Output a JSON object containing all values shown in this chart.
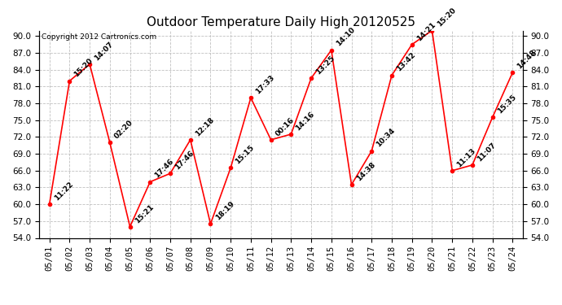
{
  "title": "Outdoor Temperature Daily High 20120525",
  "copyright": "Copyright 2012 Cartronics.com",
  "x_labels": [
    "05/01",
    "05/02",
    "05/03",
    "05/04",
    "05/05",
    "05/06",
    "05/07",
    "05/08",
    "05/09",
    "05/10",
    "05/11",
    "05/12",
    "05/13",
    "05/14",
    "05/15",
    "05/16",
    "05/17",
    "05/18",
    "05/19",
    "05/20",
    "05/21",
    "05/22",
    "05/23",
    "05/24"
  ],
  "y_values": [
    60.0,
    82.0,
    85.0,
    71.0,
    56.0,
    64.0,
    65.5,
    71.5,
    56.5,
    66.5,
    79.0,
    71.5,
    72.5,
    82.5,
    87.5,
    63.5,
    69.5,
    83.0,
    88.5,
    91.0,
    66.0,
    67.0,
    75.5,
    83.5
  ],
  "point_labels": [
    "11:22",
    "15:20",
    "14:07",
    "02:20",
    "15:21",
    "17:46",
    "17:46",
    "12:18",
    "18:19",
    "15:15",
    "17:33",
    "00:16",
    "14:16",
    "13:25",
    "14:10",
    "14:38",
    "10:34",
    "13:42",
    "14:21",
    "15:20",
    "11:13",
    "11:07",
    "15:35",
    "14:48"
  ],
  "ylim_min": 54.0,
  "ylim_max": 91.0,
  "yticks": [
    54.0,
    57.0,
    60.0,
    63.0,
    66.0,
    69.0,
    72.0,
    75.0,
    78.0,
    81.0,
    84.0,
    87.0,
    90.0
  ],
  "line_color": "#ff0000",
  "marker_color": "#ff0000",
  "background_color": "#ffffff",
  "grid_color": "#c0c0c0",
  "title_fontsize": 11,
  "label_fontsize": 6.5,
  "tick_fontsize": 7.5,
  "copyright_fontsize": 6.5
}
